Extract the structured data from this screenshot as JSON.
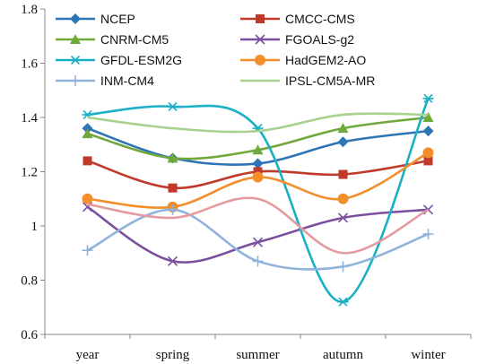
{
  "chart_data": {
    "type": "line",
    "title": "",
    "xlabel": "",
    "ylabel": "",
    "categories": [
      "year",
      "spring",
      "summer",
      "autumn",
      "winter"
    ],
    "ylim": [
      0.6,
      1.8
    ],
    "yticks": [
      0.6,
      0.8,
      1,
      1.2,
      1.4,
      1.6,
      1.8
    ],
    "ytick_labels": [
      "0.6",
      "0.8",
      "1",
      "1.2",
      "1.4",
      "1.6",
      "1.8"
    ],
    "grid": false,
    "legend_position": "top",
    "smooth": true,
    "series": [
      {
        "name": "NCEP",
        "color": "#2e75b6",
        "marker": "diamond",
        "values": [
          1.36,
          1.25,
          1.23,
          1.31,
          1.35
        ]
      },
      {
        "name": "CMCC-CMS",
        "color": "#c0392b",
        "marker": "square",
        "values": [
          1.24,
          1.14,
          1.2,
          1.19,
          1.24
        ]
      },
      {
        "name": "CNRM-CM5",
        "color": "#70a83c",
        "marker": "triangle",
        "values": [
          1.34,
          1.25,
          1.28,
          1.36,
          1.4
        ]
      },
      {
        "name": "FGOALS-g2",
        "color": "#7b4f9e",
        "marker": "x",
        "values": [
          1.07,
          0.87,
          0.94,
          1.03,
          1.06
        ]
      },
      {
        "name": "GFDL-ESM2G",
        "color": "#1ab0c4",
        "marker": "asterisk",
        "values": [
          1.41,
          1.44,
          1.36,
          0.72,
          1.47
        ]
      },
      {
        "name": "HadGEM2-AO",
        "color": "#f28e2b",
        "marker": "circle",
        "values": [
          1.1,
          1.07,
          1.18,
          1.1,
          1.27
        ]
      },
      {
        "name": "INM-CM4",
        "color": "#8fb3dc",
        "marker": "plus",
        "values": [
          0.91,
          1.06,
          0.87,
          0.85,
          0.97
        ]
      },
      {
        "name": "IPSL-CM5A-MR",
        "color": "#a9d18e",
        "marker": "none",
        "values": [
          1.4,
          1.36,
          1.35,
          1.41,
          1.41
        ]
      },
      {
        "name": "",
        "color": "#e59a9f",
        "marker": "none",
        "values": [
          1.08,
          1.03,
          1.1,
          0.9,
          1.06
        ]
      }
    ]
  }
}
